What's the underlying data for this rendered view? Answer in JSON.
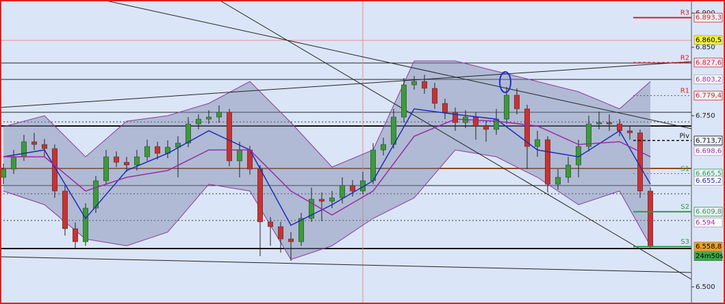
{
  "chart_data": {
    "type": "candlestick",
    "xlim": [
      -0.33,
      67
    ],
    "ylim": [
      6.475,
      6.919
    ],
    "yticks": [
      {
        "value": 6.9,
        "label": "6.900"
      },
      {
        "value": 6.85,
        "label": "6.850"
      },
      {
        "value": 6.75,
        "label": "6.750"
      },
      {
        "value": 6.5,
        "label": "6.500"
      }
    ],
    "up_color": "#3c9a3c",
    "down_color": "#c83232",
    "candles": {
      "open": [
        6.66,
        6.672,
        6.69,
        6.712,
        6.708,
        6.702,
        6.64,
        6.585,
        6.566,
        6.615,
        6.655,
        6.69,
        6.682,
        6.678,
        6.69,
        6.705,
        6.695,
        6.704,
        6.71,
        6.738,
        6.745,
        6.748,
        6.755,
        6.684,
        6.7,
        6.672,
        6.595,
        6.588,
        6.57,
        6.566,
        6.6,
        6.628,
        6.625,
        6.63,
        6.648,
        6.64,
        6.655,
        6.7,
        6.708,
        6.748,
        6.795,
        6.8,
        6.79,
        6.768,
        6.755,
        6.74,
        6.748,
        6.735,
        6.73,
        6.745,
        6.78,
        6.76,
        6.705,
        6.715,
        6.65,
        6.66,
        6.678,
        6.705,
        6.738,
        6.74,
        6.738,
        6.728,
        6.725,
        6.64
      ],
      "high": [
        6.68,
        6.7,
        6.722,
        6.725,
        6.716,
        6.708,
        6.648,
        6.594,
        6.622,
        6.662,
        6.7,
        6.698,
        6.69,
        6.7,
        6.715,
        6.712,
        6.714,
        6.72,
        6.748,
        6.752,
        6.758,
        6.765,
        6.76,
        6.712,
        6.706,
        6.678,
        6.602,
        6.595,
        6.58,
        6.608,
        6.645,
        6.638,
        6.64,
        6.66,
        6.656,
        6.668,
        6.71,
        6.718,
        6.76,
        6.805,
        6.808,
        6.81,
        6.798,
        6.775,
        6.762,
        6.758,
        6.755,
        6.742,
        6.76,
        6.792,
        6.79,
        6.766,
        6.728,
        6.72,
        6.672,
        6.69,
        6.715,
        6.75,
        6.756,
        6.752,
        6.745,
        6.735,
        6.73,
        6.645
      ],
      "low": [
        6.65,
        6.665,
        6.684,
        6.7,
        6.69,
        6.63,
        6.575,
        6.556,
        6.56,
        6.608,
        6.65,
        6.675,
        6.668,
        6.67,
        6.684,
        6.686,
        6.688,
        6.66,
        6.704,
        6.73,
        6.738,
        6.74,
        6.676,
        6.66,
        6.664,
        6.545,
        6.56,
        6.55,
        6.538,
        6.56,
        6.595,
        6.596,
        6.615,
        6.622,
        6.632,
        6.635,
        6.65,
        6.692,
        6.702,
        6.74,
        6.788,
        6.782,
        6.76,
        6.745,
        6.728,
        6.732,
        6.715,
        6.712,
        6.722,
        6.738,
        6.752,
        6.672,
        6.69,
        6.638,
        6.642,
        6.652,
        6.66,
        6.698,
        6.73,
        6.728,
        6.72,
        6.715,
        6.63,
        6.555
      ],
      "close": [
        6.672,
        6.69,
        6.712,
        6.708,
        6.702,
        6.64,
        6.585,
        6.566,
        6.615,
        6.655,
        6.69,
        6.682,
        6.678,
        6.69,
        6.705,
        6.695,
        6.704,
        6.71,
        6.738,
        6.745,
        6.748,
        6.755,
        6.684,
        6.7,
        6.672,
        6.595,
        6.588,
        6.57,
        6.566,
        6.6,
        6.628,
        6.625,
        6.63,
        6.648,
        6.64,
        6.655,
        6.7,
        6.708,
        6.748,
        6.795,
        6.8,
        6.79,
        6.768,
        6.755,
        6.74,
        6.748,
        6.735,
        6.73,
        6.745,
        6.78,
        6.76,
        6.705,
        6.715,
        6.65,
        6.66,
        6.678,
        6.705,
        6.738,
        6.74,
        6.738,
        6.728,
        6.725,
        6.64,
        6.559
      ]
    },
    "overlay_x": [
      0,
      4,
      8,
      12,
      16,
      20,
      24,
      28,
      32,
      36,
      40,
      44,
      48,
      52,
      56,
      60,
      63
    ],
    "band": {
      "color": "#8a3aa0",
      "fill": "#7c84a8",
      "upper": [
        6.734,
        6.75,
        6.69,
        6.742,
        6.75,
        6.768,
        6.8,
        6.74,
        6.675,
        6.7,
        6.83,
        6.83,
        6.815,
        6.8,
        6.785,
        6.76,
        6.8
      ],
      "lower": [
        6.64,
        6.62,
        6.57,
        6.56,
        6.58,
        6.65,
        6.64,
        6.54,
        6.56,
        6.6,
        6.63,
        6.7,
        6.69,
        6.66,
        6.62,
        6.64,
        6.56
      ]
    },
    "series": [
      {
        "color": "#1c2cb4",
        "values": [
          6.69,
          6.7,
          6.6,
          6.67,
          6.695,
          6.728,
          6.7,
          6.59,
          6.62,
          6.655,
          6.76,
          6.752,
          6.745,
          6.7,
          6.69,
          6.728,
          6.65
        ]
      },
      {
        "color": "#9a2aa8",
        "values": [
          6.69,
          6.69,
          6.64,
          6.66,
          6.67,
          6.7,
          6.7,
          6.64,
          6.605,
          6.64,
          6.72,
          6.745,
          6.742,
          6.735,
          6.708,
          6.712,
          6.69
        ]
      }
    ],
    "hlines": [
      {
        "value": 6.827,
        "style": "thin",
        "color": "#222222"
      },
      {
        "value": 6.803,
        "style": "thin",
        "color": "#222222"
      },
      {
        "value": 6.755,
        "style": "thin",
        "color": "#222222"
      },
      {
        "value": 6.735,
        "style": "thick",
        "color": "#111111"
      },
      {
        "value": 6.741,
        "style": "dotted",
        "color": "#333333"
      },
      {
        "value": 6.673,
        "style": "thick",
        "color": "#8b4a1c"
      },
      {
        "value": 6.648,
        "style": "thin",
        "color": "#222222"
      },
      {
        "value": 6.636,
        "style": "dotted",
        "color": "#333333"
      },
      {
        "value": 6.597,
        "style": "dotted",
        "color": "#333333"
      },
      {
        "value": 6.556,
        "style": "thick",
        "color": "#111111"
      },
      {
        "value": 6.86,
        "style": "thin",
        "color": "#e89090"
      }
    ],
    "vline": {
      "x": 35,
      "color": "#e89090"
    },
    "trendlines": [
      {
        "x": [
          9.7,
          67
        ],
        "values": [
          6.919,
          6.731
        ]
      },
      {
        "x": [
          21,
          67
        ],
        "values": [
          6.919,
          6.511
        ]
      },
      {
        "x": [
          -0.33,
          67
        ],
        "values": [
          6.762,
          6.829
        ]
      },
      {
        "x": [
          -0.33,
          67
        ],
        "values": [
          6.544,
          6.521
        ]
      }
    ],
    "levels": [
      {
        "label": "R3",
        "value": 6.8933,
        "value_label": "6.893,3",
        "color": "#d42020",
        "style": "solid"
      },
      {
        "label": "R2",
        "value": 6.8276,
        "value_label": "6.827,6",
        "color": "#d42020",
        "style": "dashed"
      },
      {
        "label": "R1",
        "value": 6.7794,
        "value_label": "6.779,4",
        "color": "#d42020",
        "style": "dotted"
      },
      {
        "label": "Piv",
        "value": 6.7137,
        "value_label": "6.713,7",
        "color": "#111111",
        "style": "dashed"
      },
      {
        "label": "S1",
        "value": 6.6655,
        "value_label": "6.665,5",
        "color": "#2a9a4a",
        "style": "dotted"
      },
      {
        "label": "S2",
        "value": 6.6098,
        "value_label": "6.609,8",
        "color": "#2a9a4a",
        "style": "solid"
      },
      {
        "label": "S3",
        "value": 6.5588,
        "value_label": "6.558,8",
        "color": "#2a9a4a",
        "style": "solid"
      }
    ],
    "tags": [
      {
        "value": 6.8605,
        "label": "6.860,5",
        "color": "#000000",
        "bg": "#f4f23a"
      },
      {
        "value": 6.8032,
        "label": "6.803,2",
        "color": "#9a2aa8",
        "bg": "#ffffff"
      },
      {
        "value": 6.6986,
        "label": "6.698,6",
        "color": "#9a2aa8",
        "bg": "#ffffff"
      },
      {
        "value": 6.6552,
        "label": "6.655,2",
        "color": "#1c2cb4",
        "bg": "#ffffff"
      },
      {
        "value": 6.594,
        "label": "6.594",
        "color": "#9a2aa8",
        "bg": "#ffffff"
      },
      {
        "value": 6.5588,
        "label": "6.558,8",
        "color": "#000000",
        "bg": "#f2a020"
      }
    ],
    "timer": {
      "label": "24m50s",
      "color": "#000000",
      "bg": "#3caa4a"
    }
  }
}
